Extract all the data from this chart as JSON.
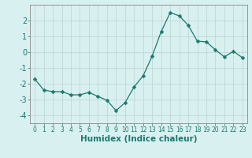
{
  "x": [
    0,
    1,
    2,
    3,
    4,
    5,
    6,
    7,
    8,
    9,
    10,
    11,
    12,
    13,
    14,
    15,
    16,
    17,
    18,
    19,
    20,
    21,
    22,
    23
  ],
  "y": [
    -1.7,
    -2.4,
    -2.5,
    -2.5,
    -2.7,
    -2.7,
    -2.55,
    -2.8,
    -3.05,
    -3.7,
    -3.2,
    -2.2,
    -1.5,
    -0.25,
    1.3,
    2.5,
    2.3,
    1.7,
    0.7,
    0.65,
    0.15,
    -0.3,
    0.05,
    -0.35
  ],
  "line_color": "#1a7a6e",
  "marker": "D",
  "marker_size": 2.5,
  "bg_color": "#d9f0f0",
  "grid_color": "#c0d8d8",
  "xlabel": "Humidex (Indice chaleur)",
  "ylim": [
    -4.5,
    3.0
  ],
  "xlim": [
    -0.5,
    23.5
  ],
  "yticks": [
    -4,
    -3,
    -2,
    -1,
    0,
    1,
    2
  ],
  "xticks": [
    0,
    1,
    2,
    3,
    4,
    5,
    6,
    7,
    8,
    9,
    10,
    11,
    12,
    13,
    14,
    15,
    16,
    17,
    18,
    19,
    20,
    21,
    22,
    23
  ],
  "xlabel_fontsize": 7.5,
  "ytick_fontsize": 7,
  "xtick_fontsize": 5.5
}
